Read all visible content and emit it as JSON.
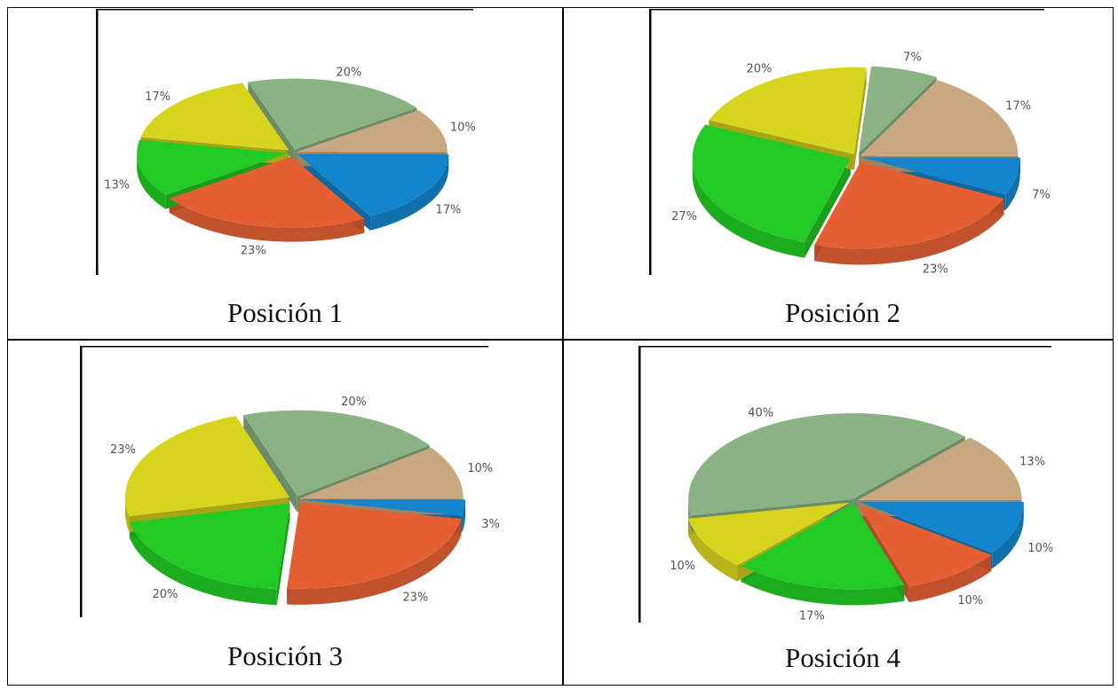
{
  "colors": {
    "blue": "#1385cc",
    "orange": "#e46033",
    "green": "#21cb24",
    "yellow": "#d6d41c",
    "sage": "#8ab384",
    "tan": "#c8a880"
  },
  "captions": {
    "p1": "Posición 1",
    "p2": "Posición 2",
    "p3": "Posición 3",
    "p4": "Posición 4"
  },
  "chart_data": [
    {
      "type": "pie",
      "title": "Posición 1",
      "slices": [
        {
          "color": "blue",
          "value": 17,
          "label": "17%"
        },
        {
          "color": "orange",
          "value": 23,
          "label": "23%"
        },
        {
          "color": "green",
          "value": 13,
          "label": "13%"
        },
        {
          "color": "yellow",
          "value": 17,
          "label": "17%"
        },
        {
          "color": "sage",
          "value": 20,
          "label": "20%"
        },
        {
          "color": "tan",
          "value": 10,
          "label": "10%"
        }
      ]
    },
    {
      "type": "pie",
      "title": "Posición 2",
      "slices": [
        {
          "color": "blue",
          "value": 7,
          "label": "7%"
        },
        {
          "color": "orange",
          "value": 23,
          "label": "23%"
        },
        {
          "color": "green",
          "value": 27,
          "label": "27%"
        },
        {
          "color": "yellow",
          "value": 20,
          "label": "20%"
        },
        {
          "color": "sage",
          "value": 7,
          "label": "7%"
        },
        {
          "color": "tan",
          "value": 17,
          "label": "17%"
        }
      ]
    },
    {
      "type": "pie",
      "title": "Posición 3",
      "slices": [
        {
          "color": "blue",
          "value": 3,
          "label": "3%"
        },
        {
          "color": "orange",
          "value": 23,
          "label": "23%"
        },
        {
          "color": "green",
          "value": 20,
          "label": "20%"
        },
        {
          "color": "yellow",
          "value": 23,
          "label": "23%"
        },
        {
          "color": "sage",
          "value": 20,
          "label": "20%"
        },
        {
          "color": "tan",
          "value": 10,
          "label": "10%"
        }
      ]
    },
    {
      "type": "pie",
      "title": "Posición 4",
      "slices": [
        {
          "color": "blue",
          "value": 10,
          "label": "10%"
        },
        {
          "color": "orange",
          "value": 10,
          "label": "10%"
        },
        {
          "color": "green",
          "value": 17,
          "label": "17%"
        },
        {
          "color": "yellow",
          "value": 10,
          "label": "10%"
        },
        {
          "color": "sage",
          "value": 40,
          "label": "40%"
        },
        {
          "color": "tan",
          "value": 13,
          "label": "13%"
        }
      ]
    }
  ]
}
